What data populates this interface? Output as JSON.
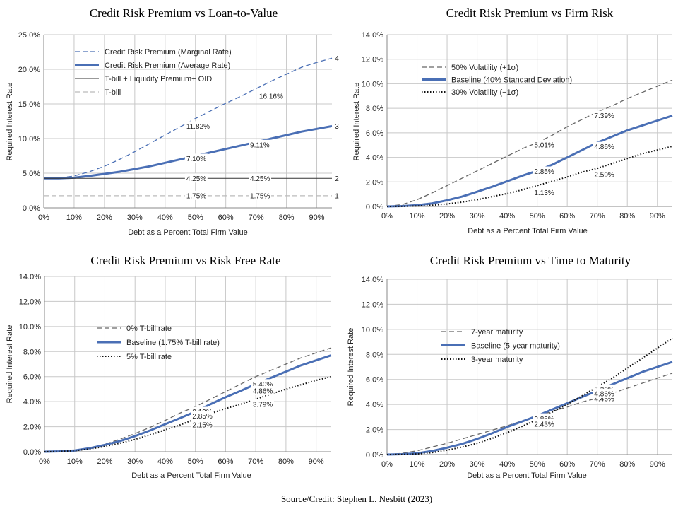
{
  "source_note": "Source/Credit: Stephen L. Nesbitt (2023)",
  "chart_data": [
    {
      "type": "line",
      "title": "Credit Risk Premium vs Loan-to-Value",
      "xlabel": "Debt as a Percent Total Firm Value",
      "ylabel": "Required Interest Rate",
      "xlim": [
        0,
        95
      ],
      "ylim": [
        0,
        25
      ],
      "xticks": [
        0,
        10,
        20,
        30,
        40,
        50,
        60,
        70,
        80,
        90
      ],
      "xtick_labels": [
        "0%",
        "10%",
        "20%",
        "30%",
        "40%",
        "50%",
        "60%",
        "70%",
        "80%",
        "90%"
      ],
      "yticks": [
        0,
        5,
        10,
        15,
        20,
        25
      ],
      "ytick_labels": [
        "0.0%",
        "5.0%",
        "10.0%",
        "15.0%",
        "20.0%",
        "25.0%"
      ],
      "grid": true,
      "legend_position": "top-left",
      "series": [
        {
          "name": "Credit Risk Premium (Marginal Rate)",
          "color": "#4a6fb5",
          "style": "dashed",
          "x": [
            0,
            5,
            10,
            15,
            20,
            25,
            30,
            35,
            40,
            45,
            50,
            55,
            60,
            65,
            70,
            75,
            80,
            85,
            90,
            95
          ],
          "values": [
            4.25,
            4.3,
            4.6,
            5.2,
            6.0,
            7.0,
            8.1,
            9.3,
            10.5,
            11.7,
            12.9,
            14.0,
            15.1,
            16.1,
            17.2,
            18.3,
            19.3,
            20.3,
            21.0,
            21.6
          ]
        },
        {
          "name": "Credit Risk Premium (Average Rate)",
          "color": "#4a6fb5",
          "style": "solid-thick",
          "x": [
            0,
            5,
            10,
            15,
            20,
            25,
            30,
            35,
            40,
            45,
            50,
            55,
            60,
            65,
            70,
            75,
            80,
            85,
            90,
            95
          ],
          "values": [
            4.25,
            4.25,
            4.35,
            4.6,
            4.9,
            5.2,
            5.6,
            6.0,
            6.5,
            7.0,
            7.5,
            8.0,
            8.5,
            9.0,
            9.5,
            10.0,
            10.5,
            11.0,
            11.4,
            11.8
          ],
          "gaps_at": [
            45,
            65
          ]
        },
        {
          "name": "T-bill + Liquidity Premium+ OID",
          "color": "#333333",
          "style": "thin",
          "x": [
            0,
            95
          ],
          "values": [
            4.25,
            4.25
          ]
        },
        {
          "name": "T-bill",
          "color": "#bbbbbb",
          "style": "dashed",
          "x": [
            0,
            95
          ],
          "values": [
            1.75,
            1.75
          ]
        }
      ],
      "annotations": [
        {
          "text": "16.16%",
          "x": 71,
          "y": 16.1
        },
        {
          "text": "11.82%",
          "x": 47,
          "y": 11.8
        },
        {
          "text": "9.11%",
          "x": 68,
          "y": 9.1
        },
        {
          "text": "7.10%",
          "x": 47,
          "y": 7.1
        },
        {
          "text": "4.25%",
          "x": 47,
          "y": 4.25
        },
        {
          "text": "4.25%",
          "x": 68,
          "y": 4.25
        },
        {
          "text": "1.75%",
          "x": 47,
          "y": 1.75
        },
        {
          "text": "1.75%",
          "x": 68,
          "y": 1.75
        },
        {
          "text": "4",
          "x": 96,
          "y": 21.6
        },
        {
          "text": "3",
          "x": 96,
          "y": 11.8
        },
        {
          "text": "2",
          "x": 96,
          "y": 4.25
        },
        {
          "text": "1",
          "x": 96,
          "y": 1.75
        }
      ]
    },
    {
      "type": "line",
      "title": "Credit Risk Premium vs Firm Risk",
      "xlabel": "Debt as a Percent Total Firm Value",
      "ylabel": "Required Interest Rate",
      "xlim": [
        0,
        95
      ],
      "ylim": [
        0,
        14
      ],
      "xticks": [
        0,
        10,
        20,
        30,
        40,
        50,
        60,
        70,
        80,
        90
      ],
      "xtick_labels": [
        "0%",
        "10%",
        "20%",
        "30%",
        "40%",
        "50%",
        "60%",
        "70%",
        "80%",
        "90%"
      ],
      "yticks": [
        0,
        2,
        4,
        6,
        8,
        10,
        12,
        14
      ],
      "ytick_labels": [
        "0.0%",
        "2.0%",
        "4.0%",
        "6.0%",
        "8.0%",
        "10.0%",
        "12.0%",
        "14.0%"
      ],
      "grid": true,
      "legend_position": "top-left",
      "series": [
        {
          "name": "50% Volatility (+1σ)",
          "color": "#666666",
          "style": "dashed",
          "x": [
            0,
            5,
            10,
            15,
            20,
            25,
            30,
            35,
            40,
            45,
            50,
            55,
            60,
            65,
            70,
            75,
            80,
            85,
            90,
            95
          ],
          "values": [
            0,
            0.15,
            0.55,
            1.1,
            1.7,
            2.3,
            2.9,
            3.5,
            4.1,
            4.7,
            5.2,
            5.8,
            6.5,
            7.1,
            7.7,
            8.2,
            8.8,
            9.3,
            9.8,
            10.3
          ]
        },
        {
          "name": "Baseline (40% Standard Deviation)",
          "color": "#4a6fb5",
          "style": "solid-thick",
          "x": [
            0,
            5,
            10,
            15,
            20,
            25,
            30,
            35,
            40,
            45,
            50,
            55,
            60,
            65,
            70,
            75,
            80,
            85,
            90,
            95
          ],
          "values": [
            0,
            0.03,
            0.1,
            0.25,
            0.5,
            0.8,
            1.2,
            1.6,
            2.05,
            2.5,
            2.9,
            3.4,
            4.0,
            4.6,
            5.2,
            5.7,
            6.2,
            6.6,
            7.0,
            7.4
          ],
          "gaps_at": [
            50,
            67
          ]
        },
        {
          "name": "30% Volatility (−1σ)",
          "color": "#111111",
          "style": "dotted",
          "x": [
            0,
            5,
            10,
            15,
            20,
            25,
            30,
            35,
            40,
            45,
            50,
            55,
            60,
            65,
            70,
            75,
            80,
            85,
            90,
            95
          ],
          "values": [
            0,
            0.01,
            0.04,
            0.1,
            0.2,
            0.35,
            0.55,
            0.8,
            1.05,
            1.35,
            1.7,
            2.05,
            2.4,
            2.8,
            3.1,
            3.5,
            3.9,
            4.3,
            4.6,
            4.9
          ]
        }
      ],
      "annotations": [
        {
          "text": "7.39%",
          "x": 69,
          "y": 7.39
        },
        {
          "text": "5.01%",
          "x": 49,
          "y": 5.01
        },
        {
          "text": "4.86%",
          "x": 69,
          "y": 4.86
        },
        {
          "text": "2.85%",
          "x": 49,
          "y": 2.85
        },
        {
          "text": "2.59%",
          "x": 69,
          "y": 2.59
        },
        {
          "text": "1.13%",
          "x": 49,
          "y": 1.13
        }
      ]
    },
    {
      "type": "line",
      "title": "Credit Risk Premium vs Risk Free Rate",
      "xlabel": "Debt as a Percent Total Firm Value",
      "ylabel": "Required Interest Rate",
      "xlim": [
        0,
        95
      ],
      "ylim": [
        0,
        14
      ],
      "xticks": [
        0,
        10,
        20,
        30,
        40,
        50,
        60,
        70,
        80,
        90
      ],
      "xtick_labels": [
        "0%",
        "10%",
        "20%",
        "30%",
        "40%",
        "50%",
        "60%",
        "70%",
        "80%",
        "90%"
      ],
      "yticks": [
        0,
        2,
        4,
        6,
        8,
        10,
        12,
        14
      ],
      "ytick_labels": [
        "0.0%",
        "2.0%",
        "4.0%",
        "6.0%",
        "8.0%",
        "10.0%",
        "12.0%",
        "14.0%"
      ],
      "grid": true,
      "legend_position": "top-left",
      "series": [
        {
          "name": "0% T-bill rate",
          "color": "#666666",
          "style": "dashed",
          "x": [
            0,
            5,
            10,
            15,
            20,
            25,
            30,
            35,
            40,
            45,
            50,
            55,
            60,
            65,
            70,
            75,
            80,
            85,
            90,
            95
          ],
          "values": [
            0,
            0.03,
            0.12,
            0.3,
            0.6,
            1.0,
            1.45,
            1.95,
            2.5,
            3.1,
            3.6,
            4.2,
            4.8,
            5.4,
            6.0,
            6.5,
            7.0,
            7.5,
            7.9,
            8.3
          ]
        },
        {
          "name": "Baseline (1.75% T-bill rate)",
          "color": "#4a6fb5",
          "style": "solid-thick",
          "x": [
            0,
            5,
            10,
            15,
            20,
            25,
            30,
            35,
            40,
            45,
            50,
            55,
            60,
            65,
            70,
            75,
            80,
            85,
            90,
            95
          ],
          "values": [
            0,
            0.03,
            0.1,
            0.28,
            0.55,
            0.85,
            1.25,
            1.7,
            2.2,
            2.7,
            3.2,
            3.8,
            4.35,
            4.86,
            5.4,
            5.9,
            6.4,
            6.9,
            7.3,
            7.7
          ],
          "gaps_at": [
            47,
            67
          ]
        },
        {
          "name": "5% T-bill rate",
          "color": "#111111",
          "style": "dotted",
          "x": [
            0,
            5,
            10,
            15,
            20,
            25,
            30,
            35,
            40,
            45,
            50,
            55,
            60,
            65,
            70,
            75,
            80,
            85,
            90,
            95
          ],
          "values": [
            0,
            0.02,
            0.08,
            0.22,
            0.42,
            0.68,
            0.98,
            1.35,
            1.75,
            2.15,
            2.6,
            3.05,
            3.45,
            3.79,
            4.2,
            4.6,
            5.0,
            5.35,
            5.7,
            6.0
          ]
        }
      ],
      "annotations": [
        {
          "text": "5.40%",
          "x": 69,
          "y": 5.4
        },
        {
          "text": "4.86%",
          "x": 69,
          "y": 4.86
        },
        {
          "text": "3.79%",
          "x": 69,
          "y": 3.79
        },
        {
          "text": "3.19%",
          "x": 49,
          "y": 3.19
        },
        {
          "text": "2.85%",
          "x": 49,
          "y": 2.85
        },
        {
          "text": "2.15%",
          "x": 49,
          "y": 2.15
        }
      ]
    },
    {
      "type": "line",
      "title": "Credit Risk Premium vs Time to Maturity",
      "xlabel": "Debt as a Percent Total Firm Value",
      "ylabel": "Required Interest Rate",
      "xlim": [
        0,
        95
      ],
      "ylim": [
        0,
        14
      ],
      "xticks": [
        0,
        10,
        20,
        30,
        40,
        50,
        60,
        70,
        80,
        90
      ],
      "xtick_labels": [
        "0%",
        "10%",
        "20%",
        "30%",
        "40%",
        "50%",
        "60%",
        "70%",
        "80%",
        "90%"
      ],
      "yticks": [
        0,
        2,
        4,
        6,
        8,
        10,
        12,
        14
      ],
      "ytick_labels": [
        "0.0%",
        "2.0%",
        "4.0%",
        "6.0%",
        "8.0%",
        "10.0%",
        "12.0%",
        "14.0%"
      ],
      "grid": true,
      "legend_position": "top-left",
      "series": [
        {
          "name": "7-year maturity",
          "color": "#666666",
          "style": "dashed",
          "x": [
            0,
            5,
            10,
            15,
            20,
            25,
            30,
            35,
            40,
            45,
            50,
            55,
            60,
            65,
            70,
            75,
            80,
            85,
            90,
            95
          ],
          "values": [
            0,
            0.1,
            0.3,
            0.6,
            0.9,
            1.25,
            1.6,
            1.95,
            2.3,
            2.7,
            3.05,
            3.45,
            3.8,
            4.2,
            4.5,
            4.9,
            5.3,
            5.7,
            6.1,
            6.5
          ]
        },
        {
          "name": "Baseline (5-year maturity)",
          "color": "#4a6fb5",
          "style": "solid-thick",
          "x": [
            0,
            5,
            10,
            15,
            20,
            25,
            30,
            35,
            40,
            45,
            50,
            55,
            60,
            65,
            70,
            75,
            80,
            85,
            90,
            95
          ],
          "values": [
            0,
            0.03,
            0.1,
            0.28,
            0.55,
            0.85,
            1.25,
            1.7,
            2.2,
            2.65,
            3.1,
            3.6,
            4.1,
            4.6,
            5.1,
            5.6,
            6.1,
            6.6,
            7.0,
            7.4
          ],
          "gaps_at": [
            48,
            66
          ]
        },
        {
          "name": "3-year maturity",
          "color": "#111111",
          "style": "dotted",
          "x": [
            0,
            5,
            10,
            15,
            20,
            25,
            30,
            35,
            40,
            45,
            50,
            55,
            60,
            65,
            70,
            75,
            80,
            85,
            90,
            95
          ],
          "values": [
            0,
            0.01,
            0.05,
            0.15,
            0.35,
            0.6,
            0.9,
            1.3,
            1.75,
            2.25,
            2.8,
            3.4,
            4.0,
            4.7,
            5.4,
            6.1,
            6.9,
            7.7,
            8.5,
            9.3
          ]
        }
      ],
      "annotations": [
        {
          "text": "5.20%",
          "x": 69,
          "y": 5.2
        },
        {
          "text": "4.46%",
          "x": 69,
          "y": 4.46
        },
        {
          "text": "4.86%",
          "x": 69,
          "y": 4.86
        },
        {
          "text": "2.90%",
          "x": 49,
          "y": 2.9
        },
        {
          "text": "2.85%",
          "x": 49,
          "y": 2.85
        },
        {
          "text": "2.43%",
          "x": 49,
          "y": 2.43
        }
      ]
    }
  ]
}
